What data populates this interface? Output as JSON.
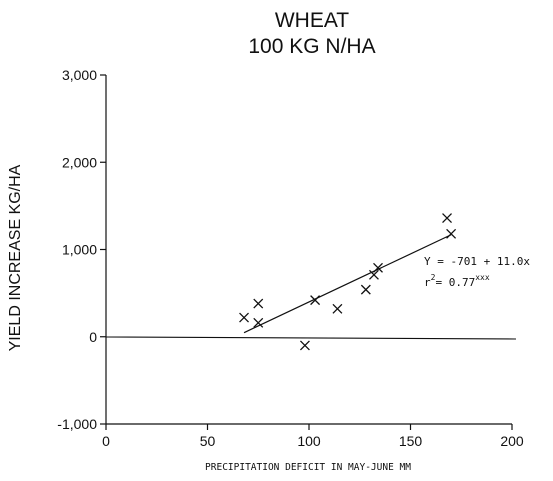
{
  "chart_data": {
    "type": "scatter",
    "title_line1": "WHEAT",
    "title_line2": "100 KG N/HA",
    "xlabel": "PRECIPITATION DEFICIT IN MAY-JUNE MM",
    "ylabel": "YIELD INCREASE KG/HA",
    "xlim": [
      0,
      200
    ],
    "ylim": [
      -1000,
      3000
    ],
    "x_ticks": [
      "0",
      "50",
      "100",
      "150",
      "200"
    ],
    "y_ticks": [
      "-1,000",
      "0",
      "1,000",
      "2,000",
      "3,000"
    ],
    "points": [
      {
        "x": 68,
        "y": 220
      },
      {
        "x": 75,
        "y": 380
      },
      {
        "x": 75,
        "y": 160
      },
      {
        "x": 98,
        "y": -100
      },
      {
        "x": 103,
        "y": 420
      },
      {
        "x": 114,
        "y": 320
      },
      {
        "x": 128,
        "y": 540
      },
      {
        "x": 132,
        "y": 710
      },
      {
        "x": 134,
        "y": 790
      },
      {
        "x": 168,
        "y": 1360
      },
      {
        "x": 170,
        "y": 1180
      }
    ],
    "regression": {
      "intercept": -701,
      "slope": 11.0,
      "x_range": [
        68,
        170
      ]
    },
    "equation": "Y = -701 + 11.0x",
    "r2_prefix": "r",
    "r2_sup": "2",
    "r2_value": "= 0.77",
    "r2_signif": "xxx",
    "zero_line": true,
    "grid": false
  }
}
